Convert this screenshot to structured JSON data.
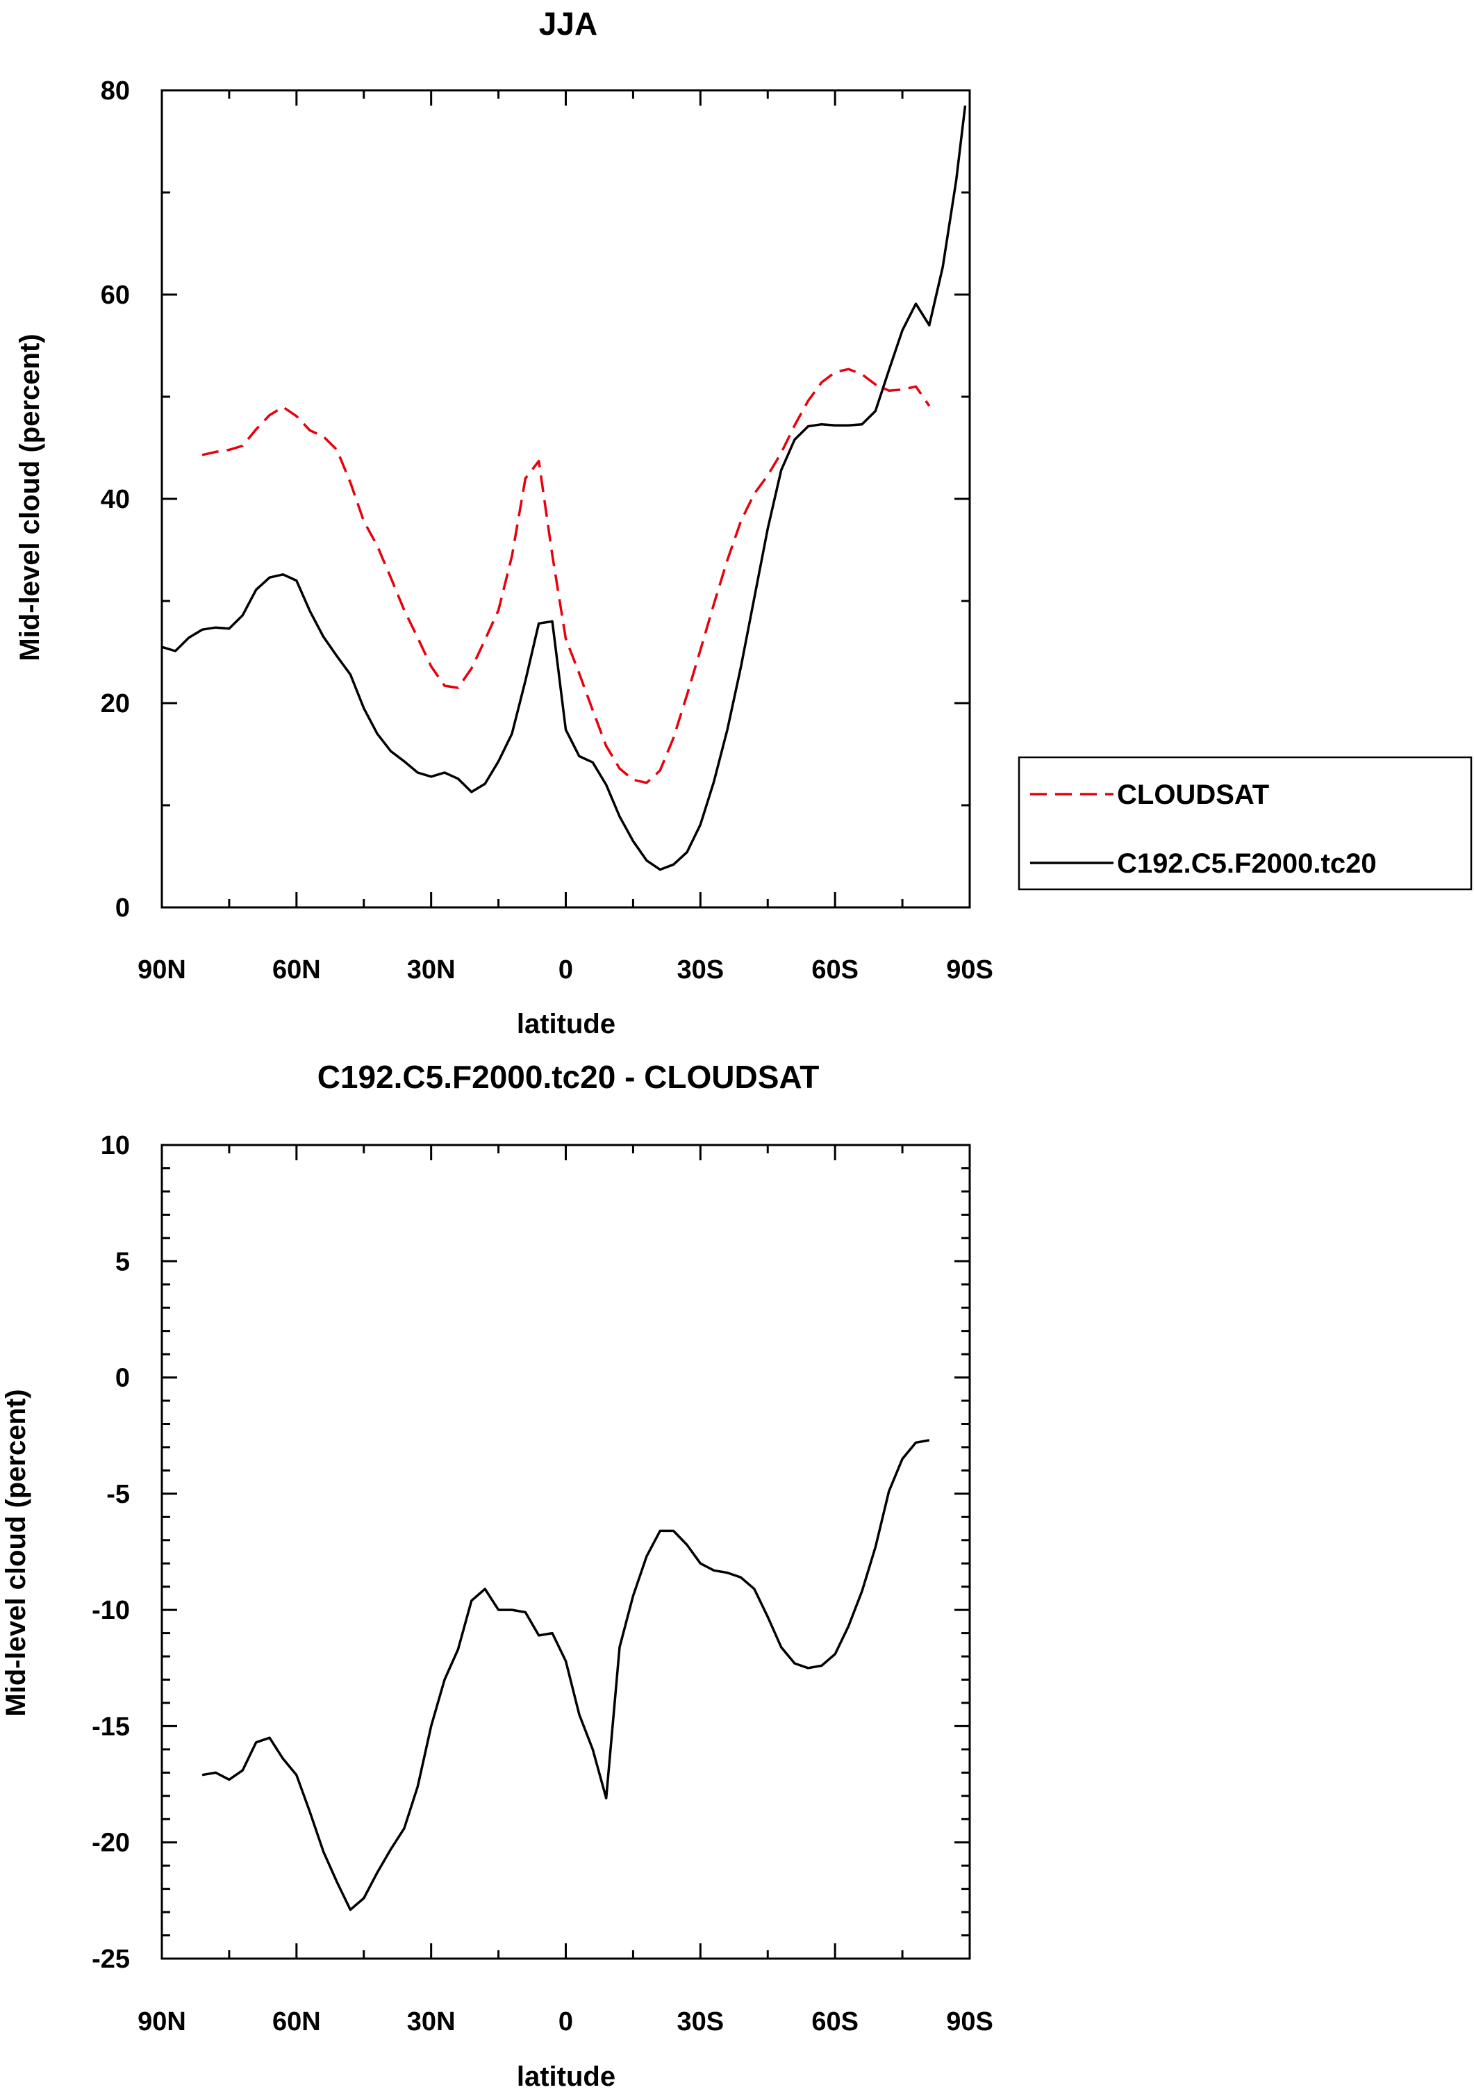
{
  "chart_data": [
    {
      "type": "line",
      "title": "JJA",
      "xlabel": "latitude",
      "ylabel": "Mid-level cloud (percent)",
      "xlim": [
        90,
        -90
      ],
      "ylim": [
        0,
        80
      ],
      "x_ticks": [
        {
          "value": 90,
          "label": "90N"
        },
        {
          "value": 60,
          "label": "60N"
        },
        {
          "value": 30,
          "label": "30N"
        },
        {
          "value": 0,
          "label": "0"
        },
        {
          "value": -30,
          "label": "30S"
        },
        {
          "value": -60,
          "label": "60S"
        },
        {
          "value": -90,
          "label": "90S"
        }
      ],
      "y_ticks": [
        {
          "value": 0,
          "label": "0"
        },
        {
          "value": 20,
          "label": "20"
        },
        {
          "value": 40,
          "label": "40"
        },
        {
          "value": 60,
          "label": "60"
        },
        {
          "value": 80,
          "label": "80"
        }
      ],
      "legend": {
        "placement": "right"
      },
      "series": [
        {
          "name": "CLOUDSAT",
          "color": "#e8000b",
          "dashed": true,
          "x": [
            81,
            78,
            75,
            72,
            69,
            66,
            63,
            60,
            57,
            54,
            51,
            48,
            45,
            42,
            39,
            36,
            33,
            30,
            27,
            24,
            21,
            18,
            15,
            12,
            9,
            6,
            3,
            0,
            -3,
            -6,
            -9,
            -12,
            -15,
            -18,
            -21,
            -24,
            -27,
            -30,
            -33,
            -36,
            -39,
            -42,
            -45,
            -48,
            -51,
            -54,
            -57,
            -60,
            -63,
            -66,
            -69,
            -72,
            -75,
            -78,
            -81
          ],
          "y": [
            44.3,
            44.6,
            44.8,
            45.2,
            46.8,
            48.2,
            49.0,
            48.1,
            46.7,
            46.1,
            44.8,
            41.6,
            37.8,
            35.4,
            32.3,
            29.1,
            26.4,
            23.6,
            21.7,
            21.5,
            23.4,
            26.2,
            29.1,
            34.4,
            42.0,
            43.7,
            34.5,
            26.3,
            22.9,
            19.3,
            15.8,
            13.6,
            12.5,
            12.2,
            13.4,
            16.6,
            20.8,
            25.2,
            29.7,
            34.0,
            37.8,
            40.5,
            42.3,
            44.5,
            47.2,
            49.6,
            51.4,
            52.4,
            52.7,
            52.2,
            51.2,
            50.6,
            50.7,
            51.0,
            49.1
          ]
        },
        {
          "name": "C192.C5.F2000.tc20",
          "color": "#000000",
          "dashed": false,
          "x": [
            90,
            87,
            84,
            81,
            78,
            75,
            72,
            69,
            66,
            63,
            60,
            57,
            54,
            51,
            48,
            45,
            42,
            39,
            36,
            33,
            30,
            27,
            24,
            21,
            18,
            15,
            12,
            9,
            6,
            3,
            0,
            -3,
            -6,
            -9,
            -12,
            -15,
            -18,
            -21,
            -24,
            -27,
            -30,
            -33,
            -36,
            -39,
            -42,
            -45,
            -48,
            -51,
            -54,
            -57,
            -60,
            -63,
            -66,
            -69,
            -72,
            -75,
            -78,
            -81,
            -84,
            -87,
            -89
          ],
          "y": [
            25.5,
            25.1,
            26.4,
            27.2,
            27.4,
            27.3,
            28.6,
            31.1,
            32.3,
            32.6,
            32.0,
            29.0,
            26.5,
            24.6,
            22.8,
            19.5,
            17.0,
            15.3,
            14.3,
            13.2,
            12.8,
            13.2,
            12.6,
            11.3,
            12.1,
            14.3,
            17.0,
            22.2,
            27.8,
            28.0,
            17.4,
            14.8,
            14.2,
            12.0,
            8.9,
            6.5,
            4.6,
            3.7,
            4.2,
            5.4,
            8.1,
            12.3,
            17.4,
            23.5,
            30.3,
            37.1,
            42.8,
            45.8,
            47.1,
            47.3,
            47.2,
            47.2,
            47.3,
            48.6,
            52.6,
            56.5,
            59.1,
            57.0,
            62.7,
            71.2,
            78.5
          ]
        }
      ]
    },
    {
      "type": "line",
      "title": "C192.C5.F2000.tc20 - CLOUDSAT",
      "xlabel": "latitude",
      "ylabel": "Mid-level cloud (percent)",
      "xlim": [
        90,
        -90
      ],
      "ylim": [
        -25,
        10
      ],
      "x_ticks": [
        {
          "value": 90,
          "label": "90N"
        },
        {
          "value": 60,
          "label": "60N"
        },
        {
          "value": 30,
          "label": "30N"
        },
        {
          "value": 0,
          "label": "0"
        },
        {
          "value": -30,
          "label": "30S"
        },
        {
          "value": -60,
          "label": "60S"
        },
        {
          "value": -90,
          "label": "90S"
        }
      ],
      "y_ticks": [
        {
          "value": -25,
          "label": "-25"
        },
        {
          "value": -20,
          "label": "-20"
        },
        {
          "value": -15,
          "label": "-15"
        },
        {
          "value": -10,
          "label": "-10"
        },
        {
          "value": -5,
          "label": "-5"
        },
        {
          "value": 0,
          "label": "0"
        },
        {
          "value": 5,
          "label": "5"
        },
        {
          "value": 10,
          "label": "10"
        }
      ],
      "series": [
        {
          "color": "#000000",
          "dashed": false,
          "x": [
            81,
            78,
            75,
            72,
            69,
            66,
            63,
            60,
            57,
            54,
            51,
            48,
            45,
            42,
            39,
            36,
            33,
            30,
            27,
            24,
            21,
            18,
            15,
            12,
            9,
            6,
            3,
            0,
            -3,
            -6,
            -9,
            -12,
            -15,
            -18,
            -21,
            -24,
            -27,
            -30,
            -33,
            -36,
            -39,
            -42,
            -45,
            -48,
            -51,
            -54,
            -57,
            -60,
            -63,
            -66,
            -69,
            -72,
            -75,
            -78,
            -81
          ],
          "y": [
            -17.1,
            -17.0,
            -17.3,
            -16.9,
            -15.7,
            -15.5,
            -16.4,
            -17.1,
            -18.7,
            -20.4,
            -21.7,
            -22.9,
            -22.4,
            -21.3,
            -20.3,
            -19.4,
            -17.6,
            -15.0,
            -13.0,
            -11.7,
            -9.6,
            -9.1,
            -10.0,
            -10.0,
            -10.1,
            -11.1,
            -11.0,
            -12.2,
            -14.5,
            -16.0,
            -18.1,
            -11.6,
            -9.4,
            -7.7,
            -6.6,
            -6.6,
            -7.2,
            -8.0,
            -8.3,
            -8.4,
            -8.6,
            -9.1,
            -10.3,
            -11.6,
            -12.3,
            -12.5,
            -12.4,
            -11.9,
            -10.7,
            -9.2,
            -7.3,
            -4.9,
            -3.5,
            -2.8,
            -2.7
          ]
        }
      ]
    }
  ]
}
